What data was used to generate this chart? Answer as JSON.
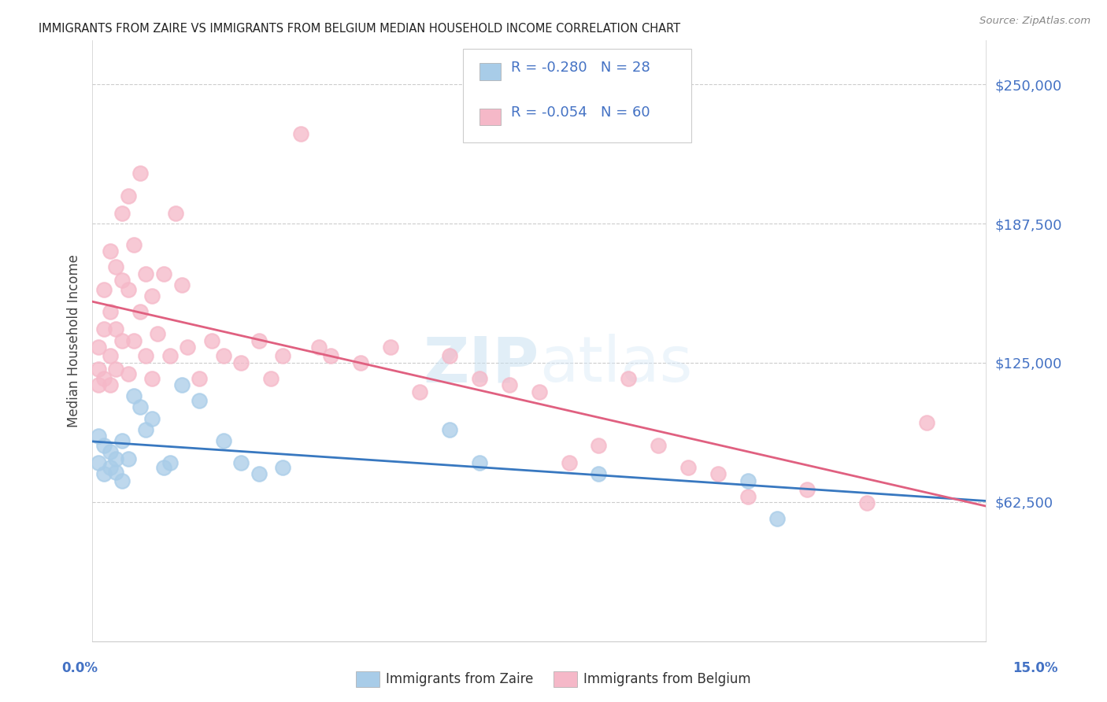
{
  "title": "IMMIGRANTS FROM ZAIRE VS IMMIGRANTS FROM BELGIUM MEDIAN HOUSEHOLD INCOME CORRELATION CHART",
  "source": "Source: ZipAtlas.com",
  "ylabel": "Median Household Income",
  "yticks": [
    62500,
    125000,
    187500,
    250000
  ],
  "ytick_labels": [
    "$62,500",
    "$125,000",
    "$187,500",
    "$250,000"
  ],
  "xlim": [
    0.0,
    0.15
  ],
  "ylim": [
    0,
    270000
  ],
  "legend1_r": "-0.280",
  "legend1_n": "28",
  "legend2_r": "-0.054",
  "legend2_n": "60",
  "watermark": "ZIPatlas",
  "blue_color": "#A8CCE8",
  "pink_color": "#F5B8C8",
  "blue_line_color": "#3878C0",
  "pink_line_color": "#E06080",
  "text_color": "#4472C4",
  "zaire_x": [
    0.001,
    0.001,
    0.002,
    0.002,
    0.003,
    0.003,
    0.004,
    0.004,
    0.005,
    0.005,
    0.006,
    0.007,
    0.008,
    0.009,
    0.01,
    0.012,
    0.013,
    0.015,
    0.018,
    0.022,
    0.025,
    0.028,
    0.032,
    0.06,
    0.065,
    0.085,
    0.11,
    0.115
  ],
  "zaire_y": [
    92000,
    80000,
    88000,
    75000,
    85000,
    78000,
    82000,
    76000,
    90000,
    72000,
    82000,
    110000,
    105000,
    95000,
    100000,
    78000,
    80000,
    115000,
    108000,
    90000,
    80000,
    75000,
    78000,
    95000,
    80000,
    75000,
    72000,
    55000
  ],
  "belgium_x": [
    0.001,
    0.001,
    0.001,
    0.002,
    0.002,
    0.002,
    0.003,
    0.003,
    0.003,
    0.003,
    0.004,
    0.004,
    0.004,
    0.005,
    0.005,
    0.005,
    0.006,
    0.006,
    0.006,
    0.007,
    0.007,
    0.008,
    0.008,
    0.009,
    0.009,
    0.01,
    0.01,
    0.011,
    0.012,
    0.013,
    0.014,
    0.015,
    0.016,
    0.018,
    0.02,
    0.022,
    0.025,
    0.028,
    0.03,
    0.032,
    0.035,
    0.038,
    0.04,
    0.045,
    0.05,
    0.055,
    0.06,
    0.065,
    0.07,
    0.075,
    0.08,
    0.085,
    0.09,
    0.095,
    0.1,
    0.105,
    0.11,
    0.12,
    0.13,
    0.14
  ],
  "belgium_y": [
    122000,
    132000,
    115000,
    158000,
    140000,
    118000,
    175000,
    148000,
    128000,
    115000,
    168000,
    140000,
    122000,
    192000,
    162000,
    135000,
    200000,
    158000,
    120000,
    178000,
    135000,
    210000,
    148000,
    165000,
    128000,
    155000,
    118000,
    138000,
    165000,
    128000,
    192000,
    160000,
    132000,
    118000,
    135000,
    128000,
    125000,
    135000,
    118000,
    128000,
    228000,
    132000,
    128000,
    125000,
    132000,
    112000,
    128000,
    118000,
    115000,
    112000,
    80000,
    88000,
    118000,
    88000,
    78000,
    75000,
    65000,
    68000,
    62000,
    98000
  ]
}
